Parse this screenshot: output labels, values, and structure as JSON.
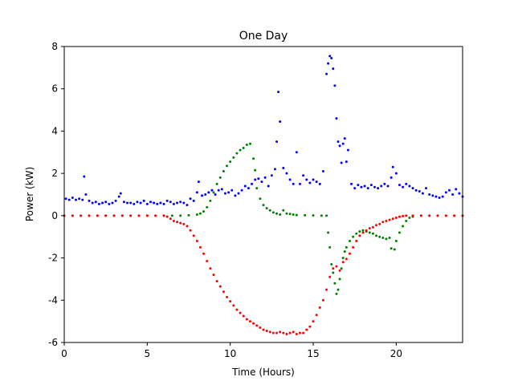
{
  "chart_data": {
    "type": "scatter",
    "title": "One Day",
    "xlabel": "Time (Hours)",
    "ylabel": "Power (kW)",
    "xlim": [
      0,
      24
    ],
    "ylim": [
      -6,
      8
    ],
    "x_ticks": [
      0,
      5,
      10,
      15,
      20
    ],
    "y_ticks": [
      -6,
      -4,
      -2,
      0,
      2,
      4,
      6,
      8
    ],
    "grid": false,
    "legend": "none",
    "series": [
      {
        "color": "#0000ff",
        "points": [
          [
            0.1,
            0.8
          ],
          [
            0.3,
            0.75
          ],
          [
            0.5,
            0.85
          ],
          [
            0.7,
            0.75
          ],
          [
            0.9,
            0.8
          ],
          [
            1.1,
            0.75
          ],
          [
            1.2,
            1.85
          ],
          [
            1.3,
            1.0
          ],
          [
            1.5,
            0.7
          ],
          [
            1.7,
            0.6
          ],
          [
            1.9,
            0.65
          ],
          [
            2.1,
            0.55
          ],
          [
            2.3,
            0.6
          ],
          [
            2.5,
            0.65
          ],
          [
            2.7,
            0.55
          ],
          [
            2.9,
            0.6
          ],
          [
            3.1,
            0.7
          ],
          [
            3.3,
            0.9
          ],
          [
            3.4,
            1.05
          ],
          [
            3.6,
            0.65
          ],
          [
            3.8,
            0.6
          ],
          [
            4.0,
            0.6
          ],
          [
            4.2,
            0.55
          ],
          [
            4.4,
            0.65
          ],
          [
            4.6,
            0.6
          ],
          [
            4.8,
            0.7
          ],
          [
            5.0,
            0.55
          ],
          [
            5.2,
            0.65
          ],
          [
            5.4,
            0.6
          ],
          [
            5.6,
            0.55
          ],
          [
            5.8,
            0.6
          ],
          [
            6.0,
            0.55
          ],
          [
            6.2,
            0.7
          ],
          [
            6.4,
            0.65
          ],
          [
            6.6,
            0.55
          ],
          [
            6.8,
            0.6
          ],
          [
            7.0,
            0.65
          ],
          [
            7.2,
            0.6
          ],
          [
            7.4,
            0.5
          ],
          [
            7.6,
            0.8
          ],
          [
            7.8,
            0.7
          ],
          [
            8.0,
            1.1
          ],
          [
            8.1,
            1.6
          ],
          [
            8.3,
            0.95
          ],
          [
            8.5,
            1.0
          ],
          [
            8.7,
            1.1
          ],
          [
            8.9,
            1.2
          ],
          [
            9.1,
            1.0
          ],
          [
            9.3,
            1.2
          ],
          [
            9.5,
            1.25
          ],
          [
            9.7,
            1.05
          ],
          [
            9.9,
            1.1
          ],
          [
            10.1,
            1.2
          ],
          [
            10.3,
            0.95
          ],
          [
            10.5,
            1.05
          ],
          [
            10.7,
            1.2
          ],
          [
            10.9,
            1.4
          ],
          [
            11.1,
            1.3
          ],
          [
            11.3,
            1.5
          ],
          [
            11.5,
            1.7
          ],
          [
            11.7,
            1.75
          ],
          [
            11.9,
            1.6
          ],
          [
            12.1,
            1.8
          ],
          [
            12.3,
            1.4
          ],
          [
            12.5,
            1.9
          ],
          [
            12.7,
            2.2
          ],
          [
            12.8,
            3.5
          ],
          [
            12.9,
            5.85
          ],
          [
            13.0,
            4.45
          ],
          [
            13.2,
            2.25
          ],
          [
            13.4,
            2.0
          ],
          [
            13.6,
            1.7
          ],
          [
            13.8,
            1.5
          ],
          [
            14.0,
            3.0
          ],
          [
            14.2,
            1.5
          ],
          [
            14.4,
            1.9
          ],
          [
            14.6,
            1.7
          ],
          [
            14.8,
            1.55
          ],
          [
            15.0,
            1.7
          ],
          [
            15.2,
            1.6
          ],
          [
            15.4,
            1.5
          ],
          [
            15.6,
            2.1
          ],
          [
            15.8,
            6.7
          ],
          [
            15.9,
            7.2
          ],
          [
            16.0,
            7.55
          ],
          [
            16.1,
            7.45
          ],
          [
            16.2,
            6.95
          ],
          [
            16.3,
            6.15
          ],
          [
            16.4,
            4.6
          ],
          [
            16.5,
            3.5
          ],
          [
            16.6,
            3.3
          ],
          [
            16.7,
            2.5
          ],
          [
            16.8,
            3.4
          ],
          [
            16.9,
            3.65
          ],
          [
            17.0,
            2.55
          ],
          [
            17.1,
            3.1
          ],
          [
            17.3,
            1.5
          ],
          [
            17.5,
            1.3
          ],
          [
            17.7,
            1.45
          ],
          [
            17.9,
            1.35
          ],
          [
            18.1,
            1.4
          ],
          [
            18.3,
            1.3
          ],
          [
            18.5,
            1.45
          ],
          [
            18.7,
            1.35
          ],
          [
            18.9,
            1.3
          ],
          [
            19.1,
            1.4
          ],
          [
            19.3,
            1.5
          ],
          [
            19.5,
            1.4
          ],
          [
            19.7,
            1.8
          ],
          [
            19.8,
            2.3
          ],
          [
            20.0,
            2.0
          ],
          [
            20.2,
            1.45
          ],
          [
            20.4,
            1.35
          ],
          [
            20.6,
            1.5
          ],
          [
            20.8,
            1.4
          ],
          [
            21.0,
            1.3
          ],
          [
            21.2,
            1.2
          ],
          [
            21.4,
            1.15
          ],
          [
            21.6,
            1.05
          ],
          [
            21.8,
            1.3
          ],
          [
            22.0,
            1.0
          ],
          [
            22.2,
            0.95
          ],
          [
            22.4,
            0.9
          ],
          [
            22.6,
            0.85
          ],
          [
            22.8,
            0.9
          ],
          [
            23.0,
            1.1
          ],
          [
            23.2,
            1.2
          ],
          [
            23.4,
            1.0
          ],
          [
            23.6,
            1.25
          ],
          [
            23.8,
            1.05
          ],
          [
            24.0,
            0.9
          ]
        ]
      },
      {
        "color": "#008000",
        "points": [
          [
            0.0,
            0
          ],
          [
            0.5,
            0
          ],
          [
            1.0,
            0
          ],
          [
            1.5,
            0
          ],
          [
            2.0,
            0
          ],
          [
            2.5,
            0
          ],
          [
            3.0,
            0
          ],
          [
            3.5,
            0
          ],
          [
            4.0,
            0
          ],
          [
            4.5,
            0
          ],
          [
            5.0,
            0
          ],
          [
            5.5,
            0
          ],
          [
            6.0,
            0
          ],
          [
            6.5,
            0
          ],
          [
            7.0,
            0
          ],
          [
            7.5,
            0.02
          ],
          [
            8.0,
            0.05
          ],
          [
            8.2,
            0.1
          ],
          [
            8.4,
            0.2
          ],
          [
            8.6,
            0.4
          ],
          [
            8.8,
            0.7
          ],
          [
            9.0,
            1.1
          ],
          [
            9.2,
            1.5
          ],
          [
            9.4,
            1.8
          ],
          [
            9.6,
            2.1
          ],
          [
            9.8,
            2.35
          ],
          [
            10.0,
            2.55
          ],
          [
            10.2,
            2.75
          ],
          [
            10.4,
            2.95
          ],
          [
            10.6,
            3.1
          ],
          [
            10.8,
            3.2
          ],
          [
            11.0,
            3.35
          ],
          [
            11.2,
            3.4
          ],
          [
            11.4,
            2.7
          ],
          [
            11.5,
            2.15
          ],
          [
            11.6,
            1.3
          ],
          [
            11.8,
            0.8
          ],
          [
            12.0,
            0.5
          ],
          [
            12.2,
            0.35
          ],
          [
            12.4,
            0.25
          ],
          [
            12.6,
            0.15
          ],
          [
            12.8,
            0.1
          ],
          [
            13.0,
            0.05
          ],
          [
            13.2,
            0.25
          ],
          [
            13.4,
            0.1
          ],
          [
            13.6,
            0.08
          ],
          [
            13.8,
            0.05
          ],
          [
            14.0,
            0.03
          ],
          [
            14.5,
            0.02
          ],
          [
            15.0,
            0.01
          ],
          [
            15.5,
            0.0
          ],
          [
            15.8,
            0
          ],
          [
            15.9,
            -0.8
          ],
          [
            16.0,
            -1.5
          ],
          [
            16.1,
            -2.3
          ],
          [
            16.2,
            -2.7
          ],
          [
            16.3,
            -3.2
          ],
          [
            16.4,
            -3.7
          ],
          [
            16.5,
            -3.5
          ],
          [
            16.6,
            -3.0
          ],
          [
            16.7,
            -2.5
          ],
          [
            16.8,
            -2.0
          ],
          [
            16.9,
            -1.7
          ],
          [
            17.0,
            -1.5
          ],
          [
            17.2,
            -1.2
          ],
          [
            17.4,
            -1.0
          ],
          [
            17.6,
            -0.85
          ],
          [
            17.8,
            -0.75
          ],
          [
            18.0,
            -0.7
          ],
          [
            18.2,
            -0.75
          ],
          [
            18.4,
            -0.8
          ],
          [
            18.6,
            -0.85
          ],
          [
            18.8,
            -0.95
          ],
          [
            19.0,
            -1.0
          ],
          [
            19.2,
            -1.05
          ],
          [
            19.4,
            -1.1
          ],
          [
            19.6,
            -1.05
          ],
          [
            19.7,
            -1.55
          ],
          [
            19.9,
            -1.6
          ],
          [
            20.0,
            -1.2
          ],
          [
            20.2,
            -0.8
          ],
          [
            20.4,
            -0.5
          ],
          [
            20.6,
            -0.25
          ],
          [
            20.8,
            -0.1
          ],
          [
            21.0,
            -0.05
          ],
          [
            21.5,
            0
          ],
          [
            22.0,
            0
          ],
          [
            22.5,
            0
          ],
          [
            23.0,
            0
          ],
          [
            23.5,
            0
          ],
          [
            24.0,
            0
          ]
        ]
      },
      {
        "color": "#ff0000",
        "points": [
          [
            0.0,
            0
          ],
          [
            0.5,
            0
          ],
          [
            1.0,
            0
          ],
          [
            1.5,
            0
          ],
          [
            2.0,
            0
          ],
          [
            2.5,
            0
          ],
          [
            3.0,
            0
          ],
          [
            3.5,
            0
          ],
          [
            4.0,
            0
          ],
          [
            4.5,
            0
          ],
          [
            5.0,
            0
          ],
          [
            5.5,
            0
          ],
          [
            6.0,
            0
          ],
          [
            6.2,
            -0.05
          ],
          [
            6.4,
            -0.15
          ],
          [
            6.6,
            -0.25
          ],
          [
            6.8,
            -0.3
          ],
          [
            7.0,
            -0.35
          ],
          [
            7.2,
            -0.4
          ],
          [
            7.4,
            -0.5
          ],
          [
            7.6,
            -0.7
          ],
          [
            7.8,
            -0.95
          ],
          [
            8.0,
            -1.2
          ],
          [
            8.2,
            -1.5
          ],
          [
            8.4,
            -1.8
          ],
          [
            8.6,
            -2.15
          ],
          [
            8.8,
            -2.5
          ],
          [
            9.0,
            -2.8
          ],
          [
            9.2,
            -3.1
          ],
          [
            9.4,
            -3.35
          ],
          [
            9.6,
            -3.6
          ],
          [
            9.8,
            -3.85
          ],
          [
            10.0,
            -4.05
          ],
          [
            10.2,
            -4.25
          ],
          [
            10.4,
            -4.45
          ],
          [
            10.6,
            -4.6
          ],
          [
            10.8,
            -4.75
          ],
          [
            11.0,
            -4.9
          ],
          [
            11.2,
            -5.0
          ],
          [
            11.4,
            -5.1
          ],
          [
            11.6,
            -5.2
          ],
          [
            11.8,
            -5.3
          ],
          [
            12.0,
            -5.4
          ],
          [
            12.2,
            -5.45
          ],
          [
            12.4,
            -5.5
          ],
          [
            12.6,
            -5.55
          ],
          [
            12.8,
            -5.55
          ],
          [
            13.0,
            -5.5
          ],
          [
            13.2,
            -5.55
          ],
          [
            13.4,
            -5.6
          ],
          [
            13.6,
            -5.55
          ],
          [
            13.8,
            -5.5
          ],
          [
            14.0,
            -5.6
          ],
          [
            14.2,
            -5.55
          ],
          [
            14.4,
            -5.55
          ],
          [
            14.6,
            -5.4
          ],
          [
            14.8,
            -5.25
          ],
          [
            15.0,
            -5.0
          ],
          [
            15.2,
            -4.7
          ],
          [
            15.4,
            -4.35
          ],
          [
            15.6,
            -4.0
          ],
          [
            15.8,
            -3.5
          ],
          [
            16.0,
            -2.9
          ],
          [
            16.2,
            -2.5
          ],
          [
            16.4,
            -2.4
          ],
          [
            16.6,
            -2.6
          ],
          [
            16.8,
            -2.2
          ],
          [
            17.0,
            -2.05
          ],
          [
            17.2,
            -1.8
          ],
          [
            17.4,
            -1.5
          ],
          [
            17.6,
            -1.2
          ],
          [
            17.8,
            -0.95
          ],
          [
            18.0,
            -0.8
          ],
          [
            18.2,
            -0.7
          ],
          [
            18.4,
            -0.6
          ],
          [
            18.6,
            -0.55
          ],
          [
            18.8,
            -0.45
          ],
          [
            19.0,
            -0.4
          ],
          [
            19.2,
            -0.3
          ],
          [
            19.4,
            -0.25
          ],
          [
            19.6,
            -0.2
          ],
          [
            19.8,
            -0.15
          ],
          [
            20.0,
            -0.1
          ],
          [
            20.2,
            -0.05
          ],
          [
            20.4,
            -0.02
          ],
          [
            20.6,
            0
          ],
          [
            21.0,
            0
          ],
          [
            21.5,
            0
          ],
          [
            22.0,
            0
          ],
          [
            22.5,
            0
          ],
          [
            23.0,
            0
          ],
          [
            23.5,
            0
          ],
          [
            24.0,
            0
          ]
        ]
      }
    ]
  }
}
